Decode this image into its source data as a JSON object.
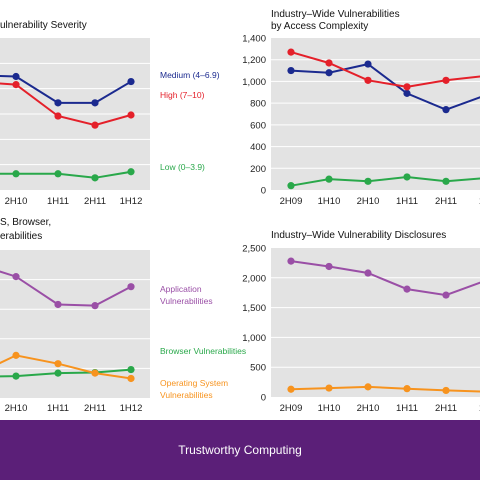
{
  "footer": {
    "label": "Trustworthy Computing"
  },
  "colors": {
    "blue": "#1b2a8f",
    "red": "#e4202a",
    "green": "#29a84a",
    "purple": "#9a4fa6",
    "orange": "#f7931e",
    "plot_bg": "#e3e3e3",
    "grid": "#ffffff",
    "footer": "#5b1f78"
  },
  "chart_data": [
    {
      "id": "severity",
      "type": "line",
      "title": [
        "ulnerability Severity"
      ],
      "categories": [
        "2H10",
        "1H11",
        "2H11",
        "1H12"
      ],
      "first_category": "",
      "y_ticks": [],
      "ylim": [
        0,
        1500
      ],
      "grid": true,
      "series": [
        {
          "name": "Medium (4–6.9)",
          "color": "#1b2a8f",
          "values": [
            1120,
            860,
            860,
            1070
          ]
        },
        {
          "name": "High (7–10)",
          "color": "#e4202a",
          "values": [
            1040,
            730,
            640,
            740
          ]
        },
        {
          "name": "Low (0–3.9)",
          "color": "#29a84a",
          "values": [
            160,
            160,
            120,
            180
          ]
        }
      ],
      "pre_values": [
        1130,
        1060,
        160
      ]
    },
    {
      "id": "access",
      "type": "line",
      "title": [
        "Industry–Wide Vulnerabilities",
        "by Access Complexity"
      ],
      "categories": [
        "2H09",
        "1H10",
        "2H10",
        "1H11",
        "2H11",
        "1H"
      ],
      "y_ticks": [
        "0",
        "200",
        "400",
        "600",
        "800",
        "1,000",
        "1,200",
        "1,400"
      ],
      "ylim": [
        0,
        1400
      ],
      "grid": true,
      "series": [
        {
          "name": "",
          "color": "#1b2a8f",
          "values": [
            1100,
            1080,
            1160,
            890,
            740,
            870
          ]
        },
        {
          "name": "",
          "color": "#e4202a",
          "values": [
            1270,
            1170,
            1010,
            950,
            1010,
            1050
          ]
        },
        {
          "name": "",
          "color": "#29a84a",
          "values": [
            40,
            100,
            80,
            120,
            80,
            110
          ]
        }
      ]
    },
    {
      "id": "os-browser",
      "type": "line",
      "title": [
        "S, Browser,",
        "erabilities"
      ],
      "categories": [
        "2H10",
        "1H11",
        "2H11",
        "1H12"
      ],
      "y_ticks": [],
      "ylim": [
        0,
        2500
      ],
      "grid": true,
      "series": [
        {
          "name": "Application Vulnerabilities",
          "color": "#9a4fa6",
          "values": [
            2050,
            1580,
            1560,
            1880
          ]
        },
        {
          "name": "Browser Vulnerabilities",
          "color": "#29a84a",
          "values": [
            370,
            420,
            430,
            480
          ]
        },
        {
          "name": "Operating System Vulnerabilities",
          "color": "#f7931e",
          "values": [
            720,
            580,
            420,
            330
          ]
        }
      ],
      "pre_values": [
        2210,
        360,
        480
      ]
    },
    {
      "id": "disclosures",
      "type": "line",
      "title": [
        "Industry–Wide Vulnerability Disclosures"
      ],
      "categories": [
        "2H09",
        "1H10",
        "2H10",
        "1H11",
        "2H11",
        "1H"
      ],
      "y_ticks": [
        "0",
        "500",
        "1,000",
        "1,500",
        "2,000",
        "2,500"
      ],
      "ylim": [
        0,
        2500
      ],
      "grid": true,
      "series": [
        {
          "name": "",
          "color": "#9a4fa6",
          "values": [
            2280,
            2190,
            2080,
            1810,
            1710,
            1950
          ]
        },
        {
          "name": "",
          "color": "#f7931e",
          "values": [
            130,
            150,
            170,
            140,
            110,
            90
          ]
        }
      ]
    }
  ]
}
